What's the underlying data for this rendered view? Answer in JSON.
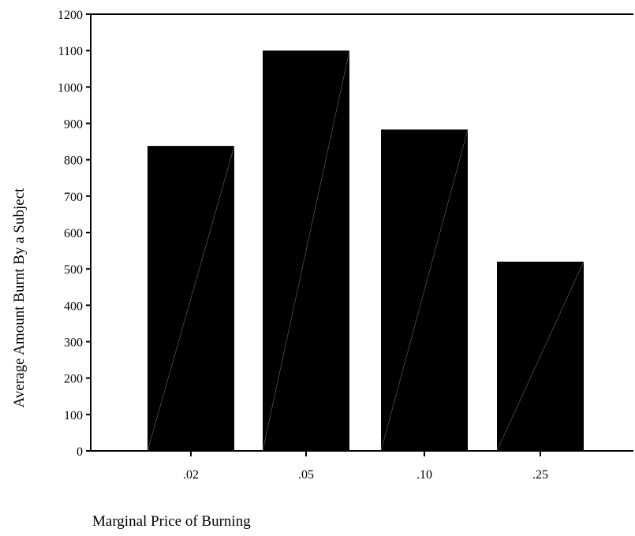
{
  "chart_data": {
    "type": "bar",
    "title": "",
    "xlabel": "Marginal Price of Burning",
    "ylabel": "Average Amount Burnt By a Subject",
    "categories": [
      ".02",
      ".05",
      ".10",
      ".25"
    ],
    "values": [
      838,
      1100,
      883,
      520
    ],
    "ylim": [
      0,
      1200
    ],
    "yticks": [
      0,
      100,
      200,
      300,
      400,
      500,
      600,
      700,
      800,
      900,
      1000,
      1100,
      1200
    ],
    "bar_color": "#000000",
    "grid": false,
    "legend": "none"
  }
}
